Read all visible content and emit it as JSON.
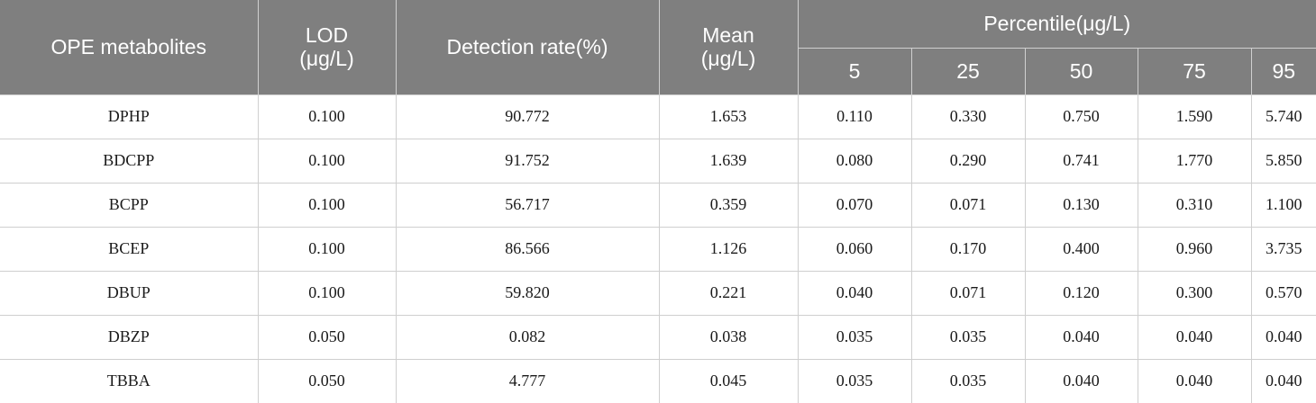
{
  "table": {
    "headers": {
      "metabolite": "OPE metabolites",
      "lod_line1": "LOD",
      "lod_line2": "(μg/L)",
      "detection_rate": "Detection rate(%)",
      "mean_line1": "Mean",
      "mean_line2": "(μg/L)",
      "percentile": "Percentile(μg/L)",
      "p5": "5",
      "p25": "25",
      "p50": "50",
      "p75": "75",
      "p95": "95"
    },
    "rows": [
      {
        "name": "DPHP",
        "lod": "0.100",
        "rate": "90.772",
        "mean": "1.653",
        "p5": "0.110",
        "p25": "0.330",
        "p50": "0.750",
        "p75": "1.590",
        "p95": "5.740"
      },
      {
        "name": "BDCPP",
        "lod": "0.100",
        "rate": "91.752",
        "mean": "1.639",
        "p5": "0.080",
        "p25": "0.290",
        "p50": "0.741",
        "p75": "1.770",
        "p95": "5.850"
      },
      {
        "name": "BCPP",
        "lod": "0.100",
        "rate": "56.717",
        "mean": "0.359",
        "p5": "0.070",
        "p25": "0.071",
        "p50": "0.130",
        "p75": "0.310",
        "p95": "1.100"
      },
      {
        "name": "BCEP",
        "lod": "0.100",
        "rate": "86.566",
        "mean": "1.126",
        "p5": "0.060",
        "p25": "0.170",
        "p50": "0.400",
        "p75": "0.960",
        "p95": "3.735"
      },
      {
        "name": "DBUP",
        "lod": "0.100",
        "rate": "59.820",
        "mean": "0.221",
        "p5": "0.040",
        "p25": "0.071",
        "p50": "0.120",
        "p75": "0.300",
        "p95": "0.570"
      },
      {
        "name": "DBZP",
        "lod": "0.050",
        "rate": "0.082",
        "mean": "0.038",
        "p5": "0.035",
        "p25": "0.035",
        "p50": "0.040",
        "p75": "0.040",
        "p95": "0.040"
      },
      {
        "name": "TBBA",
        "lod": "0.050",
        "rate": "4.777",
        "mean": "0.045",
        "p5": "0.035",
        "p25": "0.035",
        "p50": "0.040",
        "p75": "0.040",
        "p95": "0.040"
      }
    ]
  }
}
